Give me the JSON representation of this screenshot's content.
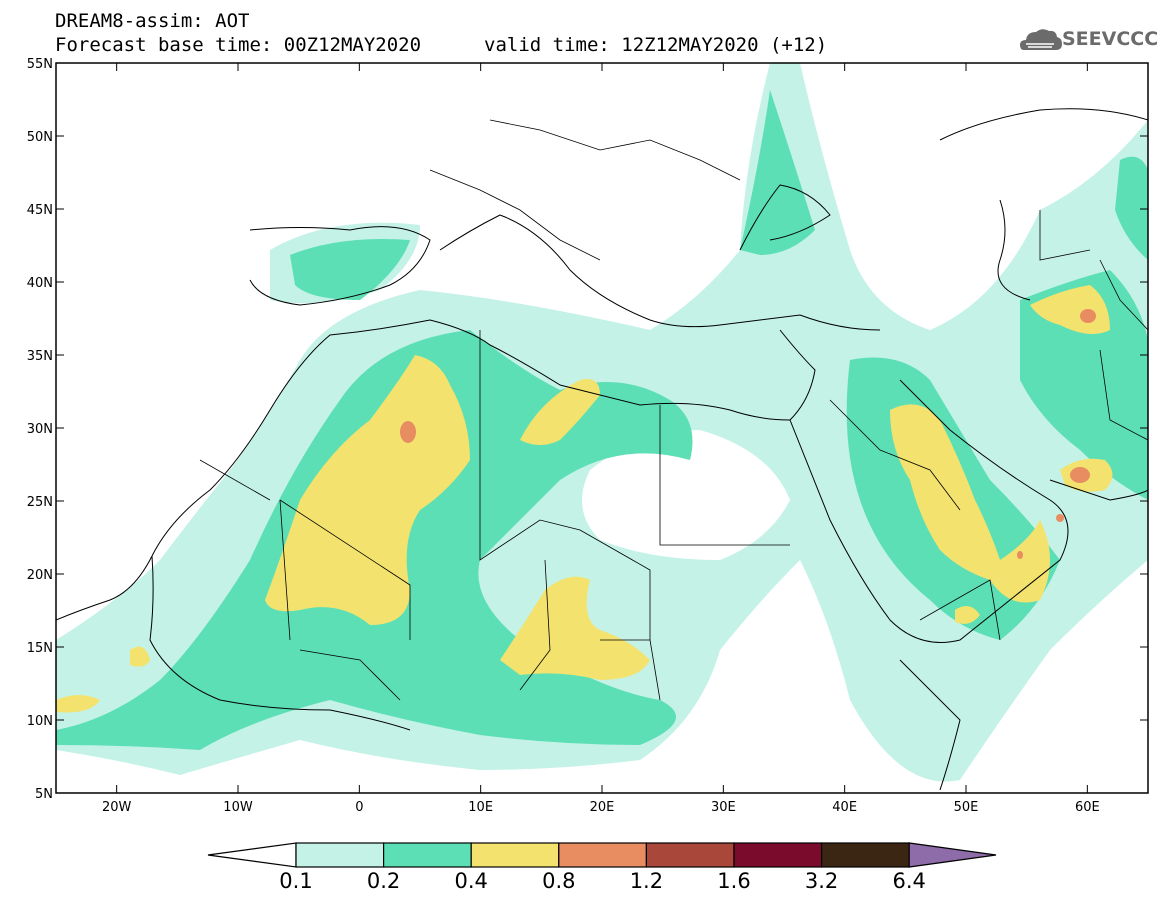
{
  "header": {
    "line1": "DREAM8-assim: AOT",
    "line2": "Forecast base time: 00Z12MAY2020",
    "line3": "valid time: 12Z12MAY2020 (+12)"
  },
  "logo": {
    "text": "SEEVCCC",
    "icon": "cloud-icon"
  },
  "map": {
    "lon_range": [
      -25,
      65
    ],
    "lat_range": [
      5,
      55
    ],
    "lon_ticks": [
      {
        "value": -20,
        "label": "20W"
      },
      {
        "value": -10,
        "label": "10W"
      },
      {
        "value": 0,
        "label": "0"
      },
      {
        "value": 10,
        "label": "10E"
      },
      {
        "value": 20,
        "label": "20E"
      },
      {
        "value": 30,
        "label": "30E"
      },
      {
        "value": 40,
        "label": "40E"
      },
      {
        "value": 50,
        "label": "50E"
      },
      {
        "value": 60,
        "label": "60E"
      }
    ],
    "lat_ticks": [
      {
        "value": 55,
        "label": "55N"
      },
      {
        "value": 50,
        "label": "50N"
      },
      {
        "value": 45,
        "label": "45N"
      },
      {
        "value": 40,
        "label": "40N"
      },
      {
        "value": 35,
        "label": "35N"
      },
      {
        "value": 30,
        "label": "30N"
      },
      {
        "value": 25,
        "label": "25N"
      },
      {
        "value": 20,
        "label": "20N"
      },
      {
        "value": 15,
        "label": "15N"
      },
      {
        "value": 10,
        "label": "10N"
      },
      {
        "value": 5,
        "label": "5N"
      }
    ]
  },
  "colorbar": {
    "below_color": "#ffffff",
    "above_color": "#8e6ba9",
    "bins": [
      {
        "color": "#c4f2e6"
      },
      {
        "color": "#5ddfb5"
      },
      {
        "color": "#f3e36e"
      },
      {
        "color": "#e88c62"
      },
      {
        "color": "#a9483a"
      },
      {
        "color": "#7a0b2c"
      },
      {
        "color": "#3b2613"
      }
    ],
    "labels": [
      "0.1",
      "0.2",
      "0.4",
      "0.8",
      "1.2",
      "1.6",
      "3.2",
      "6.4"
    ]
  },
  "aot_colors": {
    "light": "#c4f2e6",
    "mid": "#5ddfb5",
    "high": "#f3e36e",
    "peak": "#e88c62"
  }
}
